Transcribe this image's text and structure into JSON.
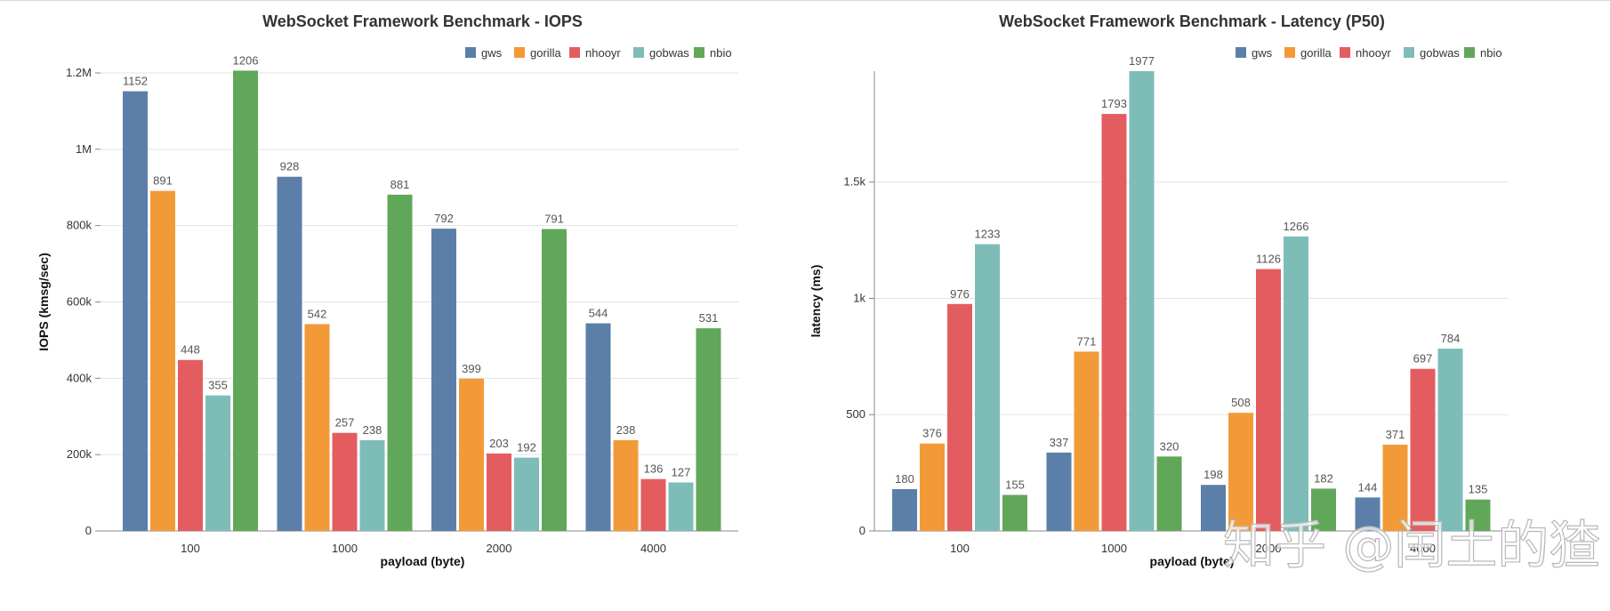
{
  "chart_data": [
    {
      "type": "bar",
      "title": "WebSocket Framework Benchmark - IOPS",
      "xlabel": "payload (byte)",
      "ylabel": "IOPS (kmsg/sec)",
      "categories": [
        "100",
        "1000",
        "2000",
        "4000"
      ],
      "ylim": [
        0,
        1200
      ],
      "yticks": [
        0,
        200,
        400,
        600,
        800,
        1000,
        1200
      ],
      "ytick_labels": [
        "0",
        "200k",
        "400k",
        "600k",
        "800k",
        "1M",
        "1.2M"
      ],
      "grid": true,
      "legend_position": "top-right",
      "series": [
        {
          "name": "gws",
          "color": "#5b7fa8",
          "values": [
            1152,
            928,
            792,
            544
          ]
        },
        {
          "name": "gorilla",
          "color": "#f29a38",
          "values": [
            891,
            542,
            399,
            238
          ]
        },
        {
          "name": "nhooyr",
          "color": "#e35d60",
          "values": [
            448,
            257,
            203,
            136
          ]
        },
        {
          "name": "gobwas",
          "color": "#7ebcb8",
          "values": [
            355,
            238,
            192,
            127
          ]
        },
        {
          "name": "nbio",
          "color": "#61a759",
          "values": [
            1206,
            881,
            791,
            531
          ]
        }
      ]
    },
    {
      "type": "bar",
      "title": "WebSocket Framework Benchmark - Latency (P50)",
      "xlabel": "payload (byte)",
      "ylabel": "latency (ms)",
      "categories": [
        "100",
        "1000",
        "2000",
        "4000"
      ],
      "ylim": [
        0,
        1977
      ],
      "yticks": [
        0,
        500,
        1000,
        1500
      ],
      "ytick_labels": [
        "0",
        "500",
        "1k",
        "1.5k"
      ],
      "grid": true,
      "legend_position": "top-right",
      "series": [
        {
          "name": "gws",
          "color": "#5b7fa8",
          "values": [
            180,
            337,
            198,
            144
          ]
        },
        {
          "name": "gorilla",
          "color": "#f29a38",
          "values": [
            376,
            771,
            508,
            371
          ]
        },
        {
          "name": "nhooyr",
          "color": "#e35d60",
          "values": [
            976,
            1793,
            1126,
            697
          ]
        },
        {
          "name": "gobwas",
          "color": "#7ebcb8",
          "values": [
            1233,
            1977,
            1266,
            784
          ]
        },
        {
          "name": "nbio",
          "color": "#61a759",
          "values": [
            155,
            320,
            182,
            135
          ]
        }
      ]
    }
  ],
  "watermark": "知乎 @闰土的猹"
}
